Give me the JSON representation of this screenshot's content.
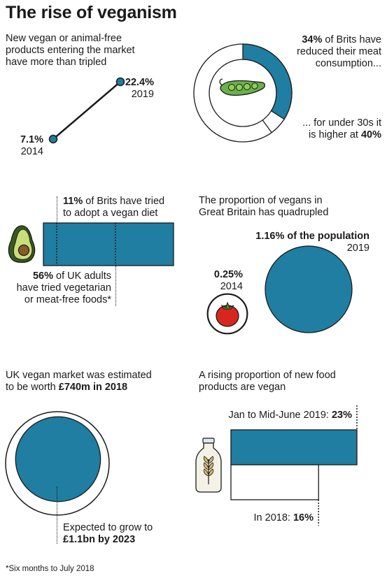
{
  "title": "The rise of veganism",
  "colors": {
    "accent": "#1f7ea1",
    "dark": "#1a1a1a",
    "light": "#ffffff"
  },
  "products": {
    "caption": "New vegan or animal-free products entering the market have more than tripled",
    "caption_lines": [
      "New vegan or animal-free",
      "products entering the market",
      "have more than tripled"
    ]
  },
  "meat": {
    "caption_pct": "34%",
    "caption_rest": " of Brits have",
    "caption_line2": "reduced their meat",
    "caption_line3": "consumption...",
    "under30_line1": "... for under 30s it",
    "under30_pre": "is higher at ",
    "under30_pct": "40%",
    "icon": "peapod-icon"
  },
  "tried": {
    "vegan_pct": "11%",
    "vegan_rest": " of Brits have tried",
    "vegan_line2": "to adopt a vegan diet",
    "veg_pct": "56%",
    "veg_rest": " of UK adults",
    "veg_line2": "have tried vegetarian",
    "veg_line3": "or meat-free foods*",
    "icon": "avocado-icon"
  },
  "proportion": {
    "caption_line1": "The proportion of vegans in",
    "caption_line2": "Great Britain has quadrupled",
    "big_label": "1.16% of the population",
    "big_year": "2019",
    "small_label": "0.25%",
    "small_year": "2014",
    "icon": "tomato-icon"
  },
  "market": {
    "caption_line1": "UK vegan market was estimated",
    "caption_pre": "to be worth ",
    "caption_value": "£740m in 2018",
    "expect_line1": "Expected to grow to",
    "expect_value": "£1.1bn by 2023"
  },
  "newfood": {
    "caption_line1": "A rising proportion of new food",
    "caption_line2": "products are vegan",
    "label_2019_pre": "Jan to Mid-June 2019: ",
    "label_2019_val": "23%",
    "label_2018_pre": "In 2018: ",
    "label_2018_val": "16%",
    "icon": "milk-bottle-icon"
  },
  "footnote": "*Six months to July 2018",
  "chart_data": [
    {
      "type": "line",
      "x": [
        2014,
        2019
      ],
      "y": [
        7.1,
        22.4
      ],
      "data_labels": [
        "7.1%",
        "22.4%"
      ],
      "tick_labels": [
        "2014",
        "2019"
      ],
      "grid": false
    },
    {
      "type": "pie",
      "categories": [
        "Brits",
        "under 30s"
      ],
      "values": [
        34,
        40
      ],
      "unit": "%"
    },
    {
      "type": "bar",
      "categories": [
        "Brits",
        "UK adults"
      ],
      "values": [
        11,
        56
      ],
      "unit": "%",
      "orientation": "horizontal"
    },
    {
      "type": "scatter",
      "x": [
        2014,
        2019
      ],
      "values": [
        0.25,
        1.16
      ],
      "unit": "% of the population"
    },
    {
      "type": "scatter",
      "x": [
        2018,
        2023
      ],
      "values": [
        740,
        1100
      ],
      "unit": "£m"
    },
    {
      "type": "bar",
      "categories": [
        "In 2018",
        "Jan to Mid-June 2019"
      ],
      "values": [
        16,
        23
      ],
      "unit": "%",
      "orientation": "horizontal"
    }
  ]
}
